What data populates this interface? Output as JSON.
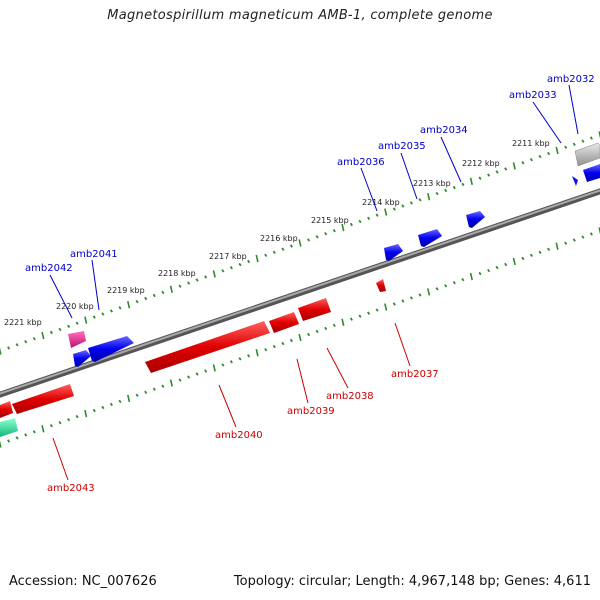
{
  "title": "Magnetospirillum magneticum AMB-1, complete genome",
  "accession": "Accession: NC_007626",
  "summary": "Topology: circular; Length: 4,967,148 bp; Genes: 4,611",
  "colors": {
    "backbone": "#7f7f7f",
    "tick_major": "#2e8b2e",
    "tick_minor": "#2e8b2e",
    "forward_gene": "#0000ee",
    "reverse_gene": "#e00000",
    "label_forward": "#0000cc",
    "label_reverse": "#cc0000",
    "gene_magenta": "#e0188a",
    "gene_green": "#20d090",
    "gene_gray": "#b8b8b8"
  },
  "ticks_kbp": [
    2211,
    2212,
    2213,
    2214,
    2215,
    2216,
    2217,
    2218,
    2219,
    2220,
    2221
  ],
  "tick_labels": [
    "2211 kbp",
    "2212 kbp",
    "2213 kbp",
    "2214 kbp",
    "2215 kbp",
    "2216 kbp",
    "2217 kbp",
    "2218 kbp",
    "2219 kbp",
    "2220 kbp",
    "2221 kbp"
  ],
  "genes_forward": [
    {
      "name": "amb2032",
      "label": "amb2032",
      "color": "gray"
    },
    {
      "name": "amb2033",
      "label": "amb2033",
      "color": "blue"
    },
    {
      "name": "amb2034",
      "label": "amb2034",
      "color": "blue"
    },
    {
      "name": "amb2035",
      "label": "amb2035",
      "color": "blue"
    },
    {
      "name": "amb2036",
      "label": "amb2036",
      "color": "blue"
    },
    {
      "name": "amb2041",
      "label": "amb2041",
      "color": "blue"
    },
    {
      "name": "amb2042",
      "label": "amb2042",
      "color": "magenta"
    }
  ],
  "genes_reverse": [
    {
      "name": "amb2037",
      "label": "amb2037",
      "color": "red"
    },
    {
      "name": "amb2038",
      "label": "amb2038",
      "color": "red"
    },
    {
      "name": "amb2039",
      "label": "amb2039",
      "color": "red"
    },
    {
      "name": "amb2040",
      "label": "amb2040",
      "color": "red"
    },
    {
      "name": "amb2043",
      "label": "amb2043",
      "color": "red"
    }
  ]
}
